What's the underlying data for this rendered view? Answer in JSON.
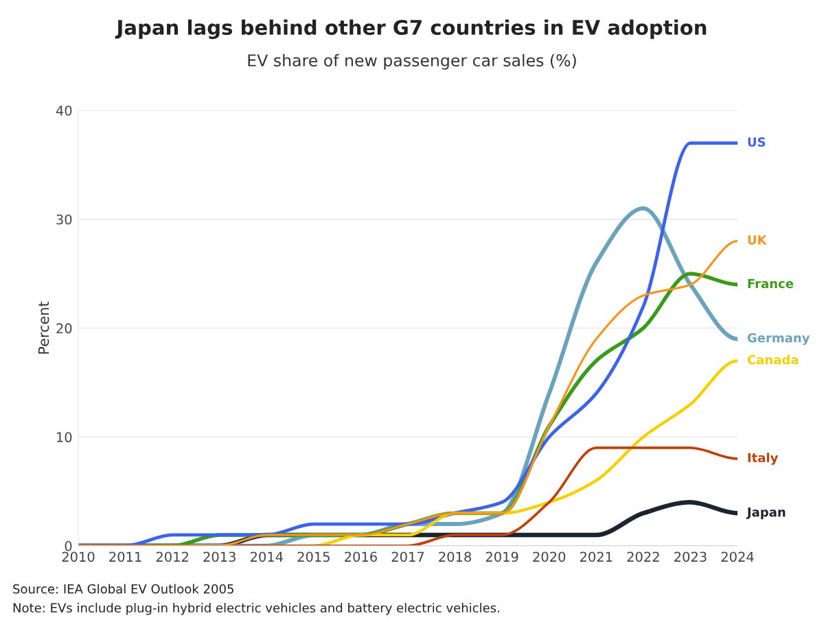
{
  "chart_data": {
    "type": "line",
    "title": "Japan lags behind other G7 countries in EV adoption",
    "subtitle": "EV share of new passenger car sales (%)",
    "ylabel": "Percent",
    "x": [
      2010,
      2011,
      2012,
      2013,
      2014,
      2015,
      2016,
      2017,
      2018,
      2019,
      2020,
      2021,
      2022,
      2023,
      2024
    ],
    "series": [
      {
        "name": "Japan",
        "color": "#1a2530",
        "values": [
          0,
          0,
          0,
          0,
          1,
          1,
          1,
          1,
          1,
          1,
          1,
          1,
          3,
          4,
          3
        ]
      },
      {
        "name": "Germany",
        "color": "#6aa3bb",
        "values": [
          0,
          0,
          0,
          0,
          0,
          1,
          1,
          2,
          2,
          3,
          14,
          26,
          31,
          24,
          19
        ]
      },
      {
        "name": "France",
        "color": "#3a9a1a",
        "values": [
          0,
          0,
          0,
          1,
          1,
          1,
          1,
          2,
          3,
          3,
          11,
          17,
          20,
          25,
          24
        ]
      },
      {
        "name": "US",
        "color": "#3d63e8",
        "values": [
          0,
          0,
          1,
          1,
          1,
          2,
          2,
          2,
          3,
          4,
          10,
          14,
          22,
          37,
          37
        ]
      },
      {
        "name": "Canada",
        "color": "#f5d000",
        "values": [
          null,
          null,
          null,
          null,
          0,
          0,
          1,
          1,
          3,
          3,
          4,
          6,
          10,
          13,
          17
        ]
      },
      {
        "name": "Italy",
        "color": "#c0410c",
        "values": [
          0,
          0,
          0,
          0,
          0,
          0,
          0,
          0,
          1,
          1,
          4,
          9,
          9,
          9,
          8
        ]
      },
      {
        "name": "UK",
        "color": "#f7941d",
        "values": [
          0,
          0,
          0,
          0,
          1,
          1,
          1,
          2,
          3,
          3,
          11,
          19,
          23,
          24,
          28
        ]
      }
    ],
    "xlim": [
      2010,
      2024
    ],
    "xticks": [
      2010,
      2011,
      2012,
      2013,
      2014,
      2015,
      2016,
      2017,
      2018,
      2019,
      2020,
      2021,
      2022,
      2023,
      2024
    ],
    "ylim": [
      0,
      40
    ],
    "yticks": [
      0,
      10,
      20,
      30,
      40
    ],
    "grid": "y",
    "legend": false,
    "line_style": "solid",
    "marker": "none",
    "annotations": [
      "Source: IEA Global EV Outlook 2005",
      "Note: EVs include plug-in hybrid electric vehicles and battery electric vehicles."
    ]
  }
}
